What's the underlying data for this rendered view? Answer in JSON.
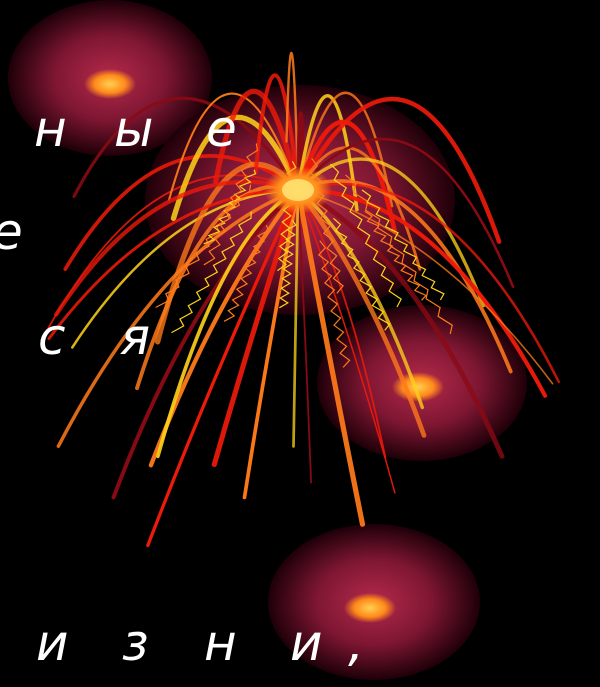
{
  "scene": {
    "background_color": "#000000",
    "palette": {
      "orb_rim": "#3a0012",
      "orb_mid": "#8f1a3a",
      "orb_core": "#ff8a1a",
      "orb_core_light": "#ffc040",
      "ray_yellow": "#ffd21a",
      "ray_orange": "#ff7a1a",
      "ray_red": "#ee1a0a",
      "ray_dark": "#8a0a14",
      "text": "#ffffff"
    }
  },
  "text_fragments": {
    "line1": [
      "н",
      "ы",
      "е"
    ],
    "line2": [
      "е"
    ],
    "line3": [
      "с",
      "я"
    ],
    "line4": [
      "и",
      "з",
      "н",
      "и",
      ","
    ]
  }
}
